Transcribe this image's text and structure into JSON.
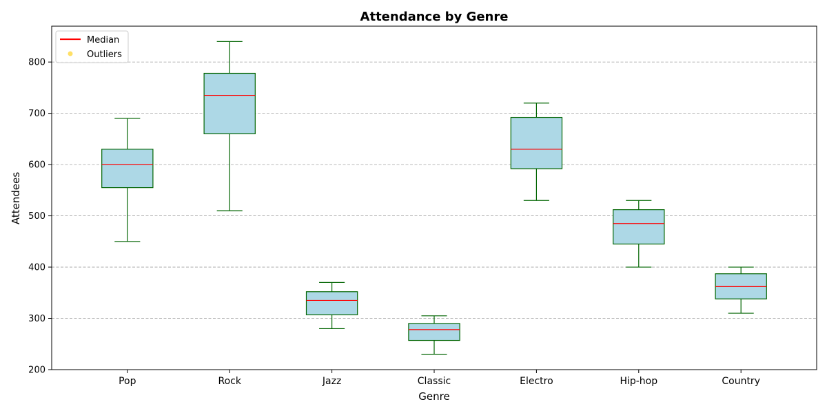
{
  "chart_data": {
    "type": "box",
    "title": "Attendance by Genre",
    "xlabel": "Genre",
    "ylabel": "Attendees",
    "ylim": [
      200,
      870
    ],
    "yticks": [
      200,
      300,
      400,
      500,
      600,
      700,
      800
    ],
    "grid": "horizontal dashed",
    "legend_position": "top-left",
    "legend": [
      {
        "label": "Median",
        "kind": "line",
        "color": "#ff0000"
      },
      {
        "label": "Outliers",
        "kind": "marker",
        "color": "#ffe066"
      }
    ],
    "colors": {
      "box_fill": "#add8e6",
      "box_edge": "#006400",
      "median": "#ff0000",
      "grid": "#a0a0a0"
    },
    "categories": [
      "Pop",
      "Rock",
      "Jazz",
      "Classic",
      "Electro",
      "Hip-hop",
      "Country"
    ],
    "boxes": [
      {
        "name": "Pop",
        "min": 450,
        "q1": 555,
        "median": 600,
        "q3": 630,
        "max": 690
      },
      {
        "name": "Rock",
        "min": 510,
        "q1": 660,
        "median": 735,
        "q3": 778,
        "max": 840
      },
      {
        "name": "Jazz",
        "min": 280,
        "q1": 307,
        "median": 335,
        "q3": 352,
        "max": 370
      },
      {
        "name": "Classic",
        "min": 230,
        "q1": 257,
        "median": 278,
        "q3": 290,
        "max": 305
      },
      {
        "name": "Electro",
        "min": 530,
        "q1": 592,
        "median": 630,
        "q3": 692,
        "max": 720
      },
      {
        "name": "Hip-hop",
        "min": 400,
        "q1": 445,
        "median": 485,
        "q3": 512,
        "max": 530
      },
      {
        "name": "Country",
        "min": 310,
        "q1": 338,
        "median": 362,
        "q3": 387,
        "max": 400
      }
    ]
  }
}
